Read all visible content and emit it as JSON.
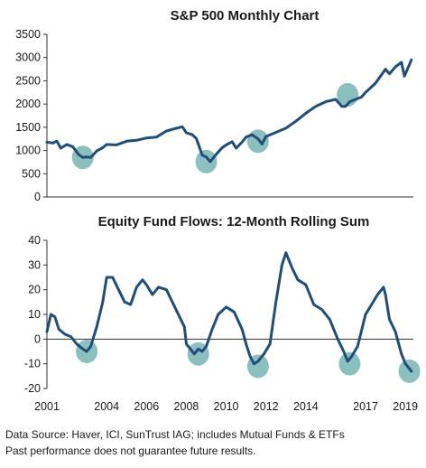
{
  "colors": {
    "line": "#1f4e79",
    "highlight": "#7fb8b8",
    "axis": "#333333"
  },
  "chart_data": [
    {
      "type": "line",
      "title": "S&P 500 Monthly Chart",
      "xlabel": "",
      "ylabel": "",
      "xlim": [
        2001,
        2019.4
      ],
      "ylim": [
        0,
        3500
      ],
      "yticks": [
        0,
        500,
        1000,
        1500,
        2000,
        2500,
        3000,
        3500
      ],
      "grid": false,
      "series": [
        {
          "x": [
            2001.0,
            2001.3,
            2001.5,
            2001.7,
            2002.0,
            2002.3,
            2002.6,
            2002.8,
            2003.0,
            2003.2,
            2003.5,
            2003.8,
            2004.0,
            2004.5,
            2005.0,
            2005.5,
            2006.0,
            2006.5,
            2007.0,
            2007.5,
            2007.8,
            2008.0,
            2008.3,
            2008.5,
            2008.8,
            2009.0,
            2009.2,
            2009.5,
            2009.8,
            2010.0,
            2010.3,
            2010.5,
            2010.8,
            2011.0,
            2011.3,
            2011.6,
            2011.8,
            2012.0,
            2012.5,
            2013.0,
            2013.5,
            2014.0,
            2014.5,
            2015.0,
            2015.5,
            2015.8,
            2016.0,
            2016.2,
            2016.5,
            2016.8,
            2017.0,
            2017.5,
            2018.0,
            2018.2,
            2018.5,
            2018.8,
            2018.95,
            2019.1,
            2019.3
          ],
          "values": [
            1180,
            1160,
            1200,
            1050,
            1130,
            1080,
            910,
            850,
            860,
            850,
            990,
            1060,
            1130,
            1120,
            1200,
            1220,
            1270,
            1290,
            1420,
            1480,
            1510,
            1380,
            1340,
            1260,
            900,
            860,
            760,
            920,
            1060,
            1120,
            1190,
            1050,
            1180,
            1290,
            1340,
            1250,
            1140,
            1300,
            1390,
            1480,
            1630,
            1800,
            1950,
            2050,
            2100,
            1950,
            1950,
            2050,
            2100,
            2150,
            2250,
            2450,
            2750,
            2650,
            2800,
            2900,
            2600,
            2750,
            2950
          ]
        }
      ],
      "highlight_markers": [
        {
          "x": 2002.8,
          "y": 850
        },
        {
          "x": 2009.0,
          "y": 760
        },
        {
          "x": 2011.6,
          "y": 1200
        },
        {
          "x": 2016.1,
          "y": 2200
        }
      ]
    },
    {
      "type": "line",
      "title": "Equity Fund Flows: 12-Month Rolling Sum",
      "xlabel": "",
      "ylabel": "",
      "xlim": [
        2001,
        2019.4
      ],
      "ylim": [
        -20,
        40
      ],
      "yticks": [
        -20,
        -10,
        0,
        10,
        20,
        30,
        40
      ],
      "xticks": [
        2001,
        2004,
        2006,
        2008,
        2010,
        2012,
        2014,
        2017,
        2019
      ],
      "grid": false,
      "series": [
        {
          "x": [
            2001.0,
            2001.2,
            2001.4,
            2001.6,
            2001.9,
            2002.2,
            2002.5,
            2002.8,
            2003.0,
            2003.2,
            2003.5,
            2003.8,
            2004.0,
            2004.3,
            2004.6,
            2004.9,
            2005.2,
            2005.5,
            2005.8,
            2006.0,
            2006.3,
            2006.6,
            2007.0,
            2007.3,
            2007.6,
            2007.9,
            2008.0,
            2008.2,
            2008.4,
            2008.6,
            2008.8,
            2009.0,
            2009.3,
            2009.6,
            2010.0,
            2010.4,
            2010.8,
            2011.0,
            2011.2,
            2011.4,
            2011.6,
            2011.9,
            2012.2,
            2012.5,
            2012.8,
            2013.0,
            2013.3,
            2013.6,
            2014.0,
            2014.4,
            2014.8,
            2015.2,
            2015.6,
            2015.9,
            2016.1,
            2016.3,
            2016.6,
            2017.0,
            2017.3,
            2017.6,
            2017.9,
            2018.0,
            2018.2,
            2018.5,
            2018.8,
            2019.0,
            2019.2,
            2019.3
          ],
          "values": [
            3,
            10,
            9,
            4,
            2,
            1,
            -2,
            -4,
            -5,
            -3,
            5,
            15,
            25,
            25,
            20,
            15,
            14,
            21,
            24,
            22,
            18,
            21,
            20,
            15,
            10,
            5,
            -2,
            -4,
            -6,
            -4,
            -5,
            -3,
            4,
            10,
            13,
            11,
            4,
            -2,
            -7,
            -10,
            -9,
            -6,
            -2,
            15,
            30,
            35,
            29,
            24,
            22,
            14,
            12,
            8,
            0,
            -5,
            -9,
            -7,
            -3,
            10,
            14,
            18,
            21,
            18,
            8,
            3,
            -6,
            -10,
            -12,
            -13
          ]
        }
      ],
      "highlight_markers": [
        {
          "x": 2003.0,
          "y": -5
        },
        {
          "x": 2008.6,
          "y": -6
        },
        {
          "x": 2011.6,
          "y": -11
        },
        {
          "x": 2016.2,
          "y": -10
        },
        {
          "x": 2019.2,
          "y": -13
        }
      ]
    }
  ],
  "footer": {
    "source": "Data Source: Haver, ICI, SunTrust IAG; includes Mutual Funds & ETFs",
    "disclaimer": "Past performance does not guarantee future results."
  }
}
